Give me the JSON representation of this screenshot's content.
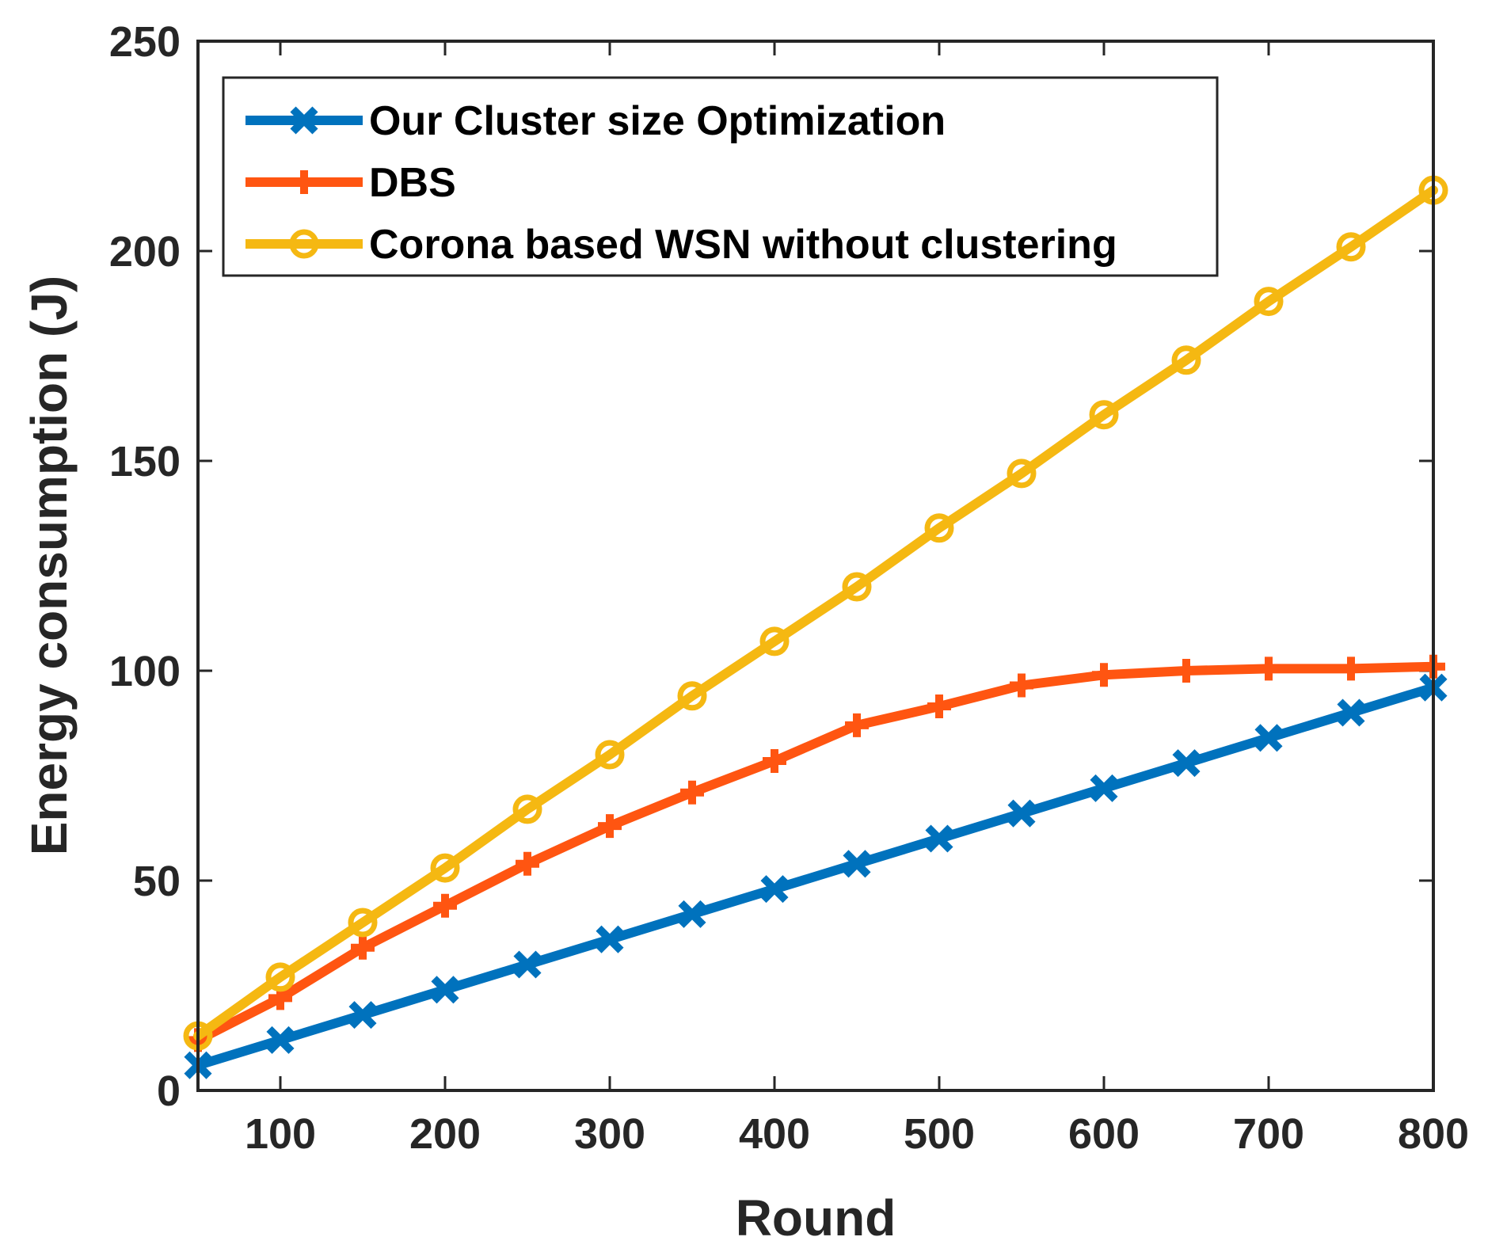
{
  "chart_data": {
    "type": "line",
    "title": "",
    "xlabel": "Round",
    "ylabel": "Energy consumption (J)",
    "xlim": [
      50,
      800
    ],
    "ylim": [
      0,
      250
    ],
    "xticks": [
      100,
      200,
      300,
      400,
      500,
      600,
      700,
      800
    ],
    "yticks": [
      0,
      50,
      100,
      150,
      200,
      250
    ],
    "x": [
      50,
      100,
      150,
      200,
      250,
      300,
      350,
      400,
      450,
      500,
      550,
      600,
      650,
      700,
      750,
      800
    ],
    "legend_position": "top-left",
    "series": [
      {
        "name": "Our Cluster size Optimization",
        "color": "#0072BD",
        "marker": "x",
        "values": [
          6,
          12,
          18,
          24,
          30,
          36,
          42,
          48,
          54,
          60,
          66,
          72,
          78,
          84,
          90,
          96
        ]
      },
      {
        "name": "DBS",
        "color": "#FF5511",
        "marker": "plus",
        "values": [
          12,
          22,
          34,
          44,
          54,
          63,
          71,
          78.5,
          87,
          91.5,
          96.5,
          99,
          100,
          100.5,
          100.5,
          101
        ]
      },
      {
        "name": "Corona based WSN without clustering",
        "color": "#F5B812",
        "marker": "circle",
        "values": [
          13,
          27,
          40,
          53,
          67,
          80,
          94,
          107,
          120,
          134,
          147,
          161,
          174,
          188,
          201,
          214.5
        ]
      }
    ]
  }
}
